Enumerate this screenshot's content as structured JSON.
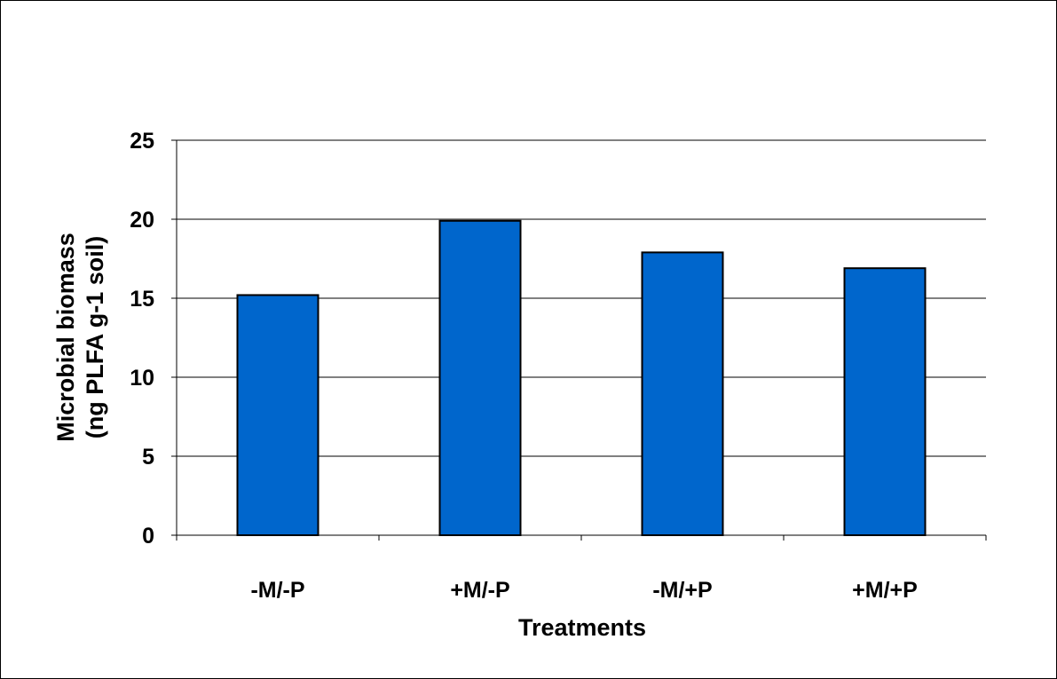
{
  "chart_data": {
    "type": "bar",
    "categories": [
      "-M/-P",
      "+M/-P",
      "-M/+P",
      "+M/+P"
    ],
    "values": [
      15.2,
      19.9,
      17.9,
      16.9
    ],
    "xlabel": "Treatments",
    "ylabel_line1": "Microbial biomass",
    "ylabel_line2": "(ng PLFA g-1 soil)",
    "ylim": [
      0,
      25
    ],
    "yticks": [
      "0",
      "5",
      "10",
      "15",
      "20",
      "25"
    ],
    "grid": true,
    "legend": "none",
    "bar_color": "#0066CC",
    "bar_edge_color": "#000000"
  }
}
